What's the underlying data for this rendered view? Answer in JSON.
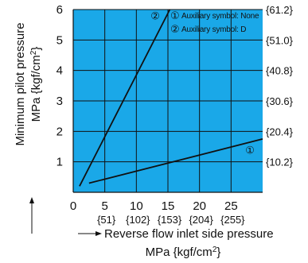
{
  "chart_data": {
    "type": "line",
    "title": "",
    "xlabel": "Reverse flow inlet side pressure",
    "xlabel_unit": "MPa {kgf/cm2}",
    "ylabel": "Minimum pilot pressure",
    "ylabel_unit": "MPa {kgf/cm2}",
    "xlim": [
      0,
      30
    ],
    "ylim": [
      0,
      6
    ],
    "x_ticks": [
      "0",
      "5",
      "10",
      "15",
      "20",
      "25"
    ],
    "x_ticks_alt": [
      "{51}",
      "{102}",
      "{153}",
      "{204}",
      "{255}"
    ],
    "y_ticks": [
      "1",
      "2",
      "3",
      "4",
      "5",
      "6"
    ],
    "y_ticks_alt": [
      "{10.2}",
      "{20.4}",
      "{30.6}",
      "{40.8}",
      "{51.0}",
      "{61.2}"
    ],
    "grid": true,
    "background_color": "#1aa8e8",
    "line_color": "#111111",
    "series": [
      {
        "name": "Auxiliary symbol: None",
        "marker": "①",
        "x": [
          2.5,
          30
        ],
        "y": [
          0.3,
          1.75
        ]
      },
      {
        "name": "Auxiliary symbol: D",
        "marker": "②",
        "x": [
          1,
          15.3
        ],
        "y": [
          0.2,
          6
        ]
      }
    ],
    "legend": {
      "placement": "top-right",
      "items": [
        {
          "marker": "①",
          "label": "Auxiliary symbol: None"
        },
        {
          "marker": "②",
          "label": "Auxiliary symbol: D"
        }
      ]
    },
    "annotations": [
      {
        "text": "②",
        "x": 13,
        "y": 5.8
      },
      {
        "text": "①",
        "x": 28,
        "y": 1.4
      }
    ]
  }
}
